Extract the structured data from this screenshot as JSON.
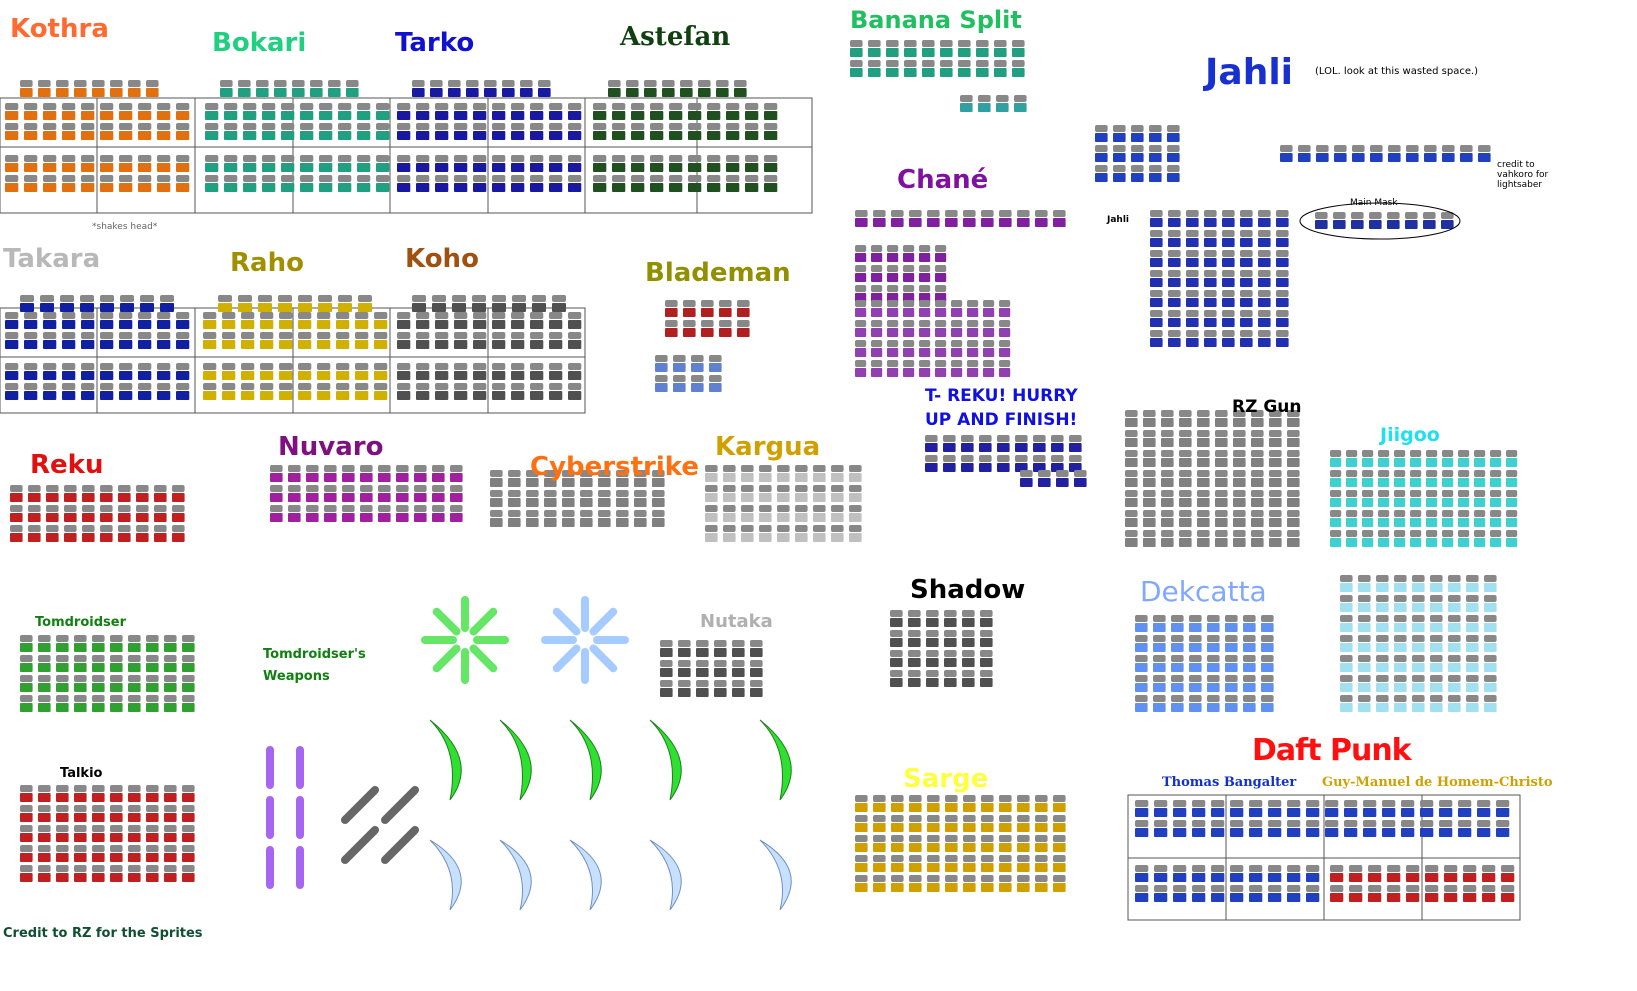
{
  "labels": {
    "kothra": "Kothra",
    "bokari": "Bokari",
    "tarko": "Tarko",
    "astesan": "Asteſan",
    "banana_split": "Banana Split",
    "jahli": "Jahli",
    "chane": "Chané",
    "takara": "Takara",
    "raho": "Raho",
    "koho": "Koho",
    "blademan": "Blademan",
    "rz_gun": "RZ Gun",
    "jiigoo": "Jiigoo",
    "reku": "Reku",
    "nuvaro": "Nuvaro",
    "cyberstrike": "Cyberstrike",
    "kargua": "Kargua",
    "shadow": "Shadow",
    "dekcatta": "Dekcatta",
    "tomdroidser": "Tomdroidser",
    "tomdroidser_weapons": "Tomdroidser's Weapons",
    "nutaka": "Nutaka",
    "daft_punk": "Daft Punk",
    "sarge": "Sarge",
    "talkio": "Talkio",
    "thomas": "Thomas Bangalter",
    "guy_manuel": "Guy-Manuel de Homem-Christo"
  },
  "notes": {
    "wasted_space": "(LOL.  look at this wasted space.)",
    "lightsaber_credit": "credit to vahkoro for lightsaber",
    "shakes_head": "*shakes head*",
    "main_mask": "Main Mask",
    "jahli_small": "Jahli",
    "hurry": "T- REKU! HURRY UP AND FINISH!",
    "credit_rz": "Credit to RZ for the Sprites"
  }
}
